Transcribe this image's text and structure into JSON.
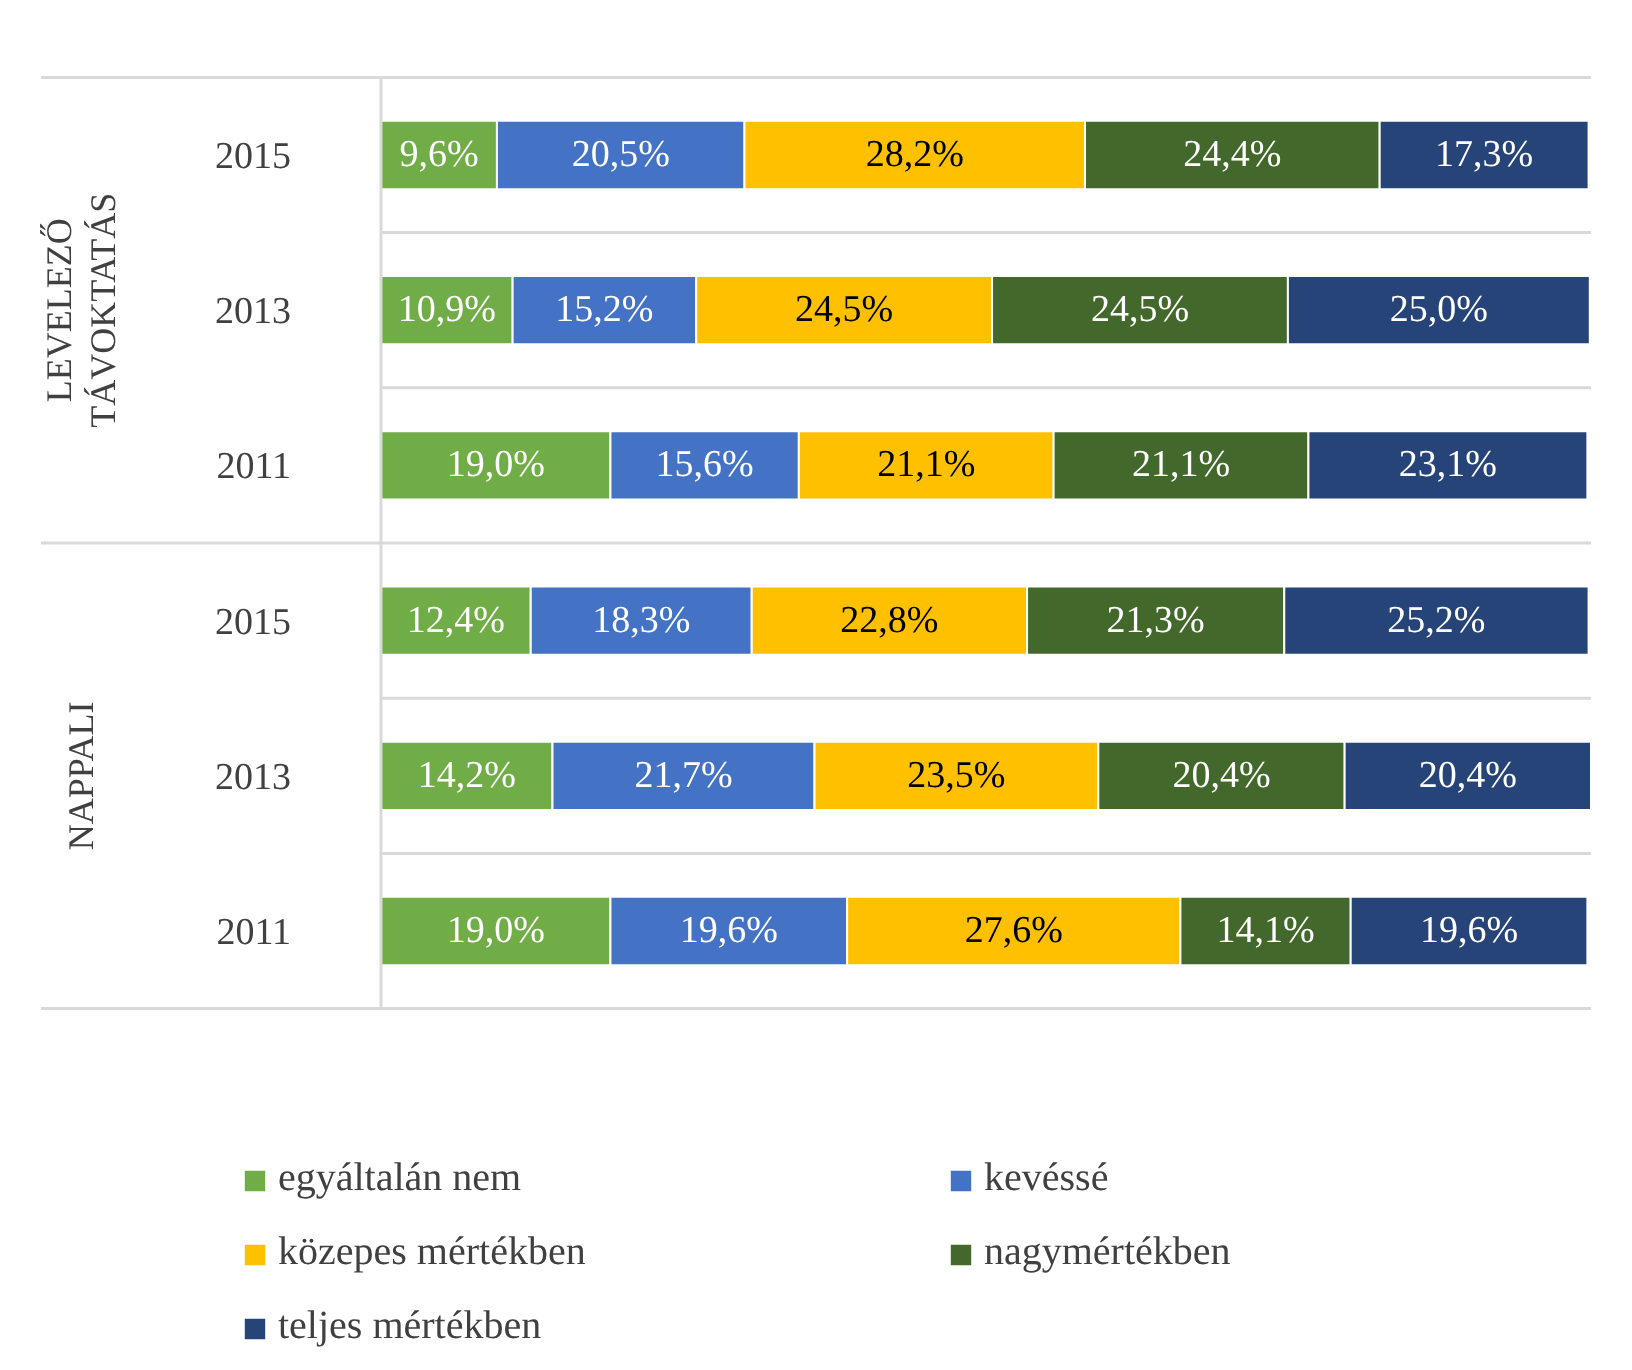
{
  "chart_data": {
    "type": "bar",
    "orientation": "horizontal",
    "stacked": true,
    "relative": false,
    "grid": "y",
    "legend": "bottom",
    "categories": [
      "2015",
      "2013",
      "2011",
      "2015",
      "2013",
      "2011"
    ],
    "annotations": [
      "LEVELEZŐ TÁVOKTATÁS",
      "NAPPALI"
    ],
    "series": [
      {
        "name": "egyáltalán nem",
        "color": "#70ad47",
        "values": [
          9.6,
          10.9,
          19.0,
          12.4,
          14.2,
          19.0
        ],
        "value_labels": [
          "9,6%",
          "10,9%",
          "19,0%",
          "12,4%",
          "14,2%",
          "19,0%"
        ]
      },
      {
        "name": "kevéssé",
        "color": "#4472c4",
        "values": [
          20.5,
          15.2,
          15.6,
          18.3,
          21.7,
          19.6
        ],
        "value_labels": [
          "20,5%",
          "15,2%",
          "15,6%",
          "18,3%",
          "21,7%",
          "19,6%"
        ]
      },
      {
        "name": "közepes mértékben",
        "color": "#ffc000",
        "values": [
          28.2,
          24.5,
          21.1,
          22.8,
          23.5,
          27.6
        ],
        "value_labels": [
          "28,2%",
          "24,5%",
          "21,1%",
          "22,8%",
          "23,5%",
          "27,6%"
        ]
      },
      {
        "name": "nagymértékben",
        "color": "#43682b",
        "values": [
          24.4,
          24.5,
          21.1,
          21.3,
          20.4,
          14.1
        ],
        "value_labels": [
          "24,4%",
          "24,5%",
          "21,1%",
          "21,3%",
          "20,4%",
          "14,1%"
        ]
      },
      {
        "name": "teljes mértékben",
        "color": "#264478",
        "values": [
          17.3,
          25.0,
          23.1,
          25.2,
          20.4,
          19.6
        ],
        "value_labels": [
          "17,3%",
          "25,0%",
          "23,1%",
          "25,2%",
          "20,4%",
          "19,6%"
        ]
      }
    ]
  }
}
